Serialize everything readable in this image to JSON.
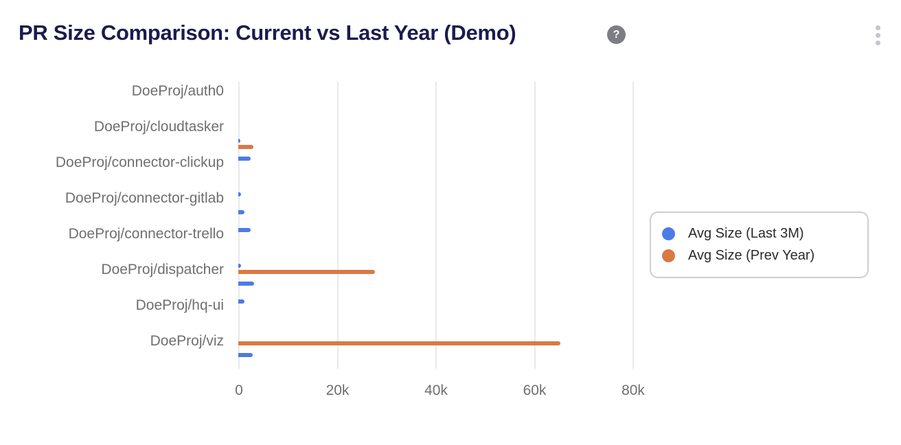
{
  "header": {
    "title": "PR Size Comparison: Current vs Last Year (Demo)",
    "help_glyph": "?",
    "menu_icon": "kebab-vertical"
  },
  "colors": {
    "series_last_3m": "#4C7BE6",
    "series_prev_year": "#D97944",
    "title_text": "#1B1B4F",
    "axis_text": "#6F6F6F",
    "gridline": "#E9E9EB"
  },
  "legend": {
    "position": "right",
    "items": [
      {
        "label": "Avg Size (Last 3M)",
        "color": "#4C7BE6"
      },
      {
        "label": "Avg Size (Prev Year)",
        "color": "#D97944"
      }
    ]
  },
  "chart_data": {
    "type": "bar",
    "orientation": "horizontal",
    "title": "PR Size Comparison: Current vs Last Year (Demo)",
    "series_names": [
      "Avg Size (Last 3M)",
      "Avg Size (Prev Year)"
    ],
    "categories": [
      "DoeProj/auth0",
      "DoeProj/cloudtasker",
      "DoeProj/connector-clickup",
      "DoeProj/connector-gitlab",
      "DoeProj/connector-trello",
      "DoeProj/dispatcher",
      "DoeProj/hq-ui",
      "DoeProj/viz"
    ],
    "x_ticks": [
      "0",
      "20k",
      "40k",
      "60k",
      "80k"
    ],
    "x_tick_values": [
      0,
      20000,
      40000,
      60000,
      80000
    ],
    "xlim": [
      0,
      80000
    ],
    "grid": true,
    "legend_position": "right",
    "note": "Axis renders every other category label; unlabeled rows shown with empty label.",
    "rows": [
      {
        "label": "DoeProj/auth0",
        "last_3m": 0,
        "prev_year": 0
      },
      {
        "label": "",
        "last_3m": 0,
        "prev_year": 0
      },
      {
        "label": "DoeProj/cloudtasker",
        "last_3m": 0,
        "prev_year": 0
      },
      {
        "label": "",
        "last_3m": 300,
        "prev_year": 3100
      },
      {
        "label": "DoeProj/connector-clickup",
        "last_3m": 2500,
        "prev_year": 0
      },
      {
        "label": "",
        "last_3m": 0,
        "prev_year": 0
      },
      {
        "label": "DoeProj/connector-gitlab",
        "last_3m": 600,
        "prev_year": 0
      },
      {
        "label": "",
        "last_3m": 1300,
        "prev_year": 0
      },
      {
        "label": "DoeProj/connector-trello",
        "last_3m": 2500,
        "prev_year": 0
      },
      {
        "label": "",
        "last_3m": 0,
        "prev_year": 0
      },
      {
        "label": "DoeProj/dispatcher",
        "last_3m": 500,
        "prev_year": 27800
      },
      {
        "label": "",
        "last_3m": 3200,
        "prev_year": 0
      },
      {
        "label": "DoeProj/hq-ui",
        "last_3m": 1300,
        "prev_year": 0
      },
      {
        "label": "",
        "last_3m": 0,
        "prev_year": 0
      },
      {
        "label": "DoeProj/viz",
        "last_3m": 0,
        "prev_year": 65300
      },
      {
        "label": "",
        "last_3m": 2900,
        "prev_year": 0
      }
    ]
  }
}
